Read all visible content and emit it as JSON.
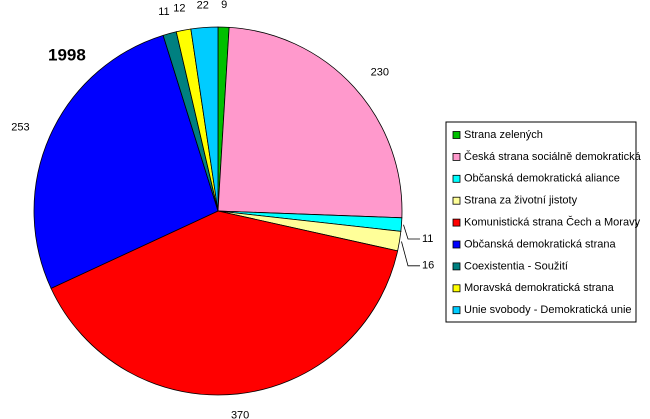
{
  "chart_data": {
    "type": "pie",
    "title": "1998",
    "categories": [
      "Strana zelených",
      "Česká strana sociálně demokratická",
      "Občanská demokratická aliance",
      "Strana za životní jistoty",
      "Komunistická strana Čech a Moravy",
      "Občanská demokratická strana",
      "Coexistentia - Soužití",
      "Moravská demokratická strana",
      "Unie svobody - Demokratická unie"
    ],
    "values": [
      9,
      230,
      11,
      16,
      370,
      253,
      11,
      12,
      22
    ],
    "colors": [
      "#00c000",
      "#ff99cc",
      "#00ffff",
      "#ffff99",
      "#ff0000",
      "#0000ff",
      "#008080",
      "#ffff00",
      "#00ccff"
    ],
    "legend": "right"
  }
}
